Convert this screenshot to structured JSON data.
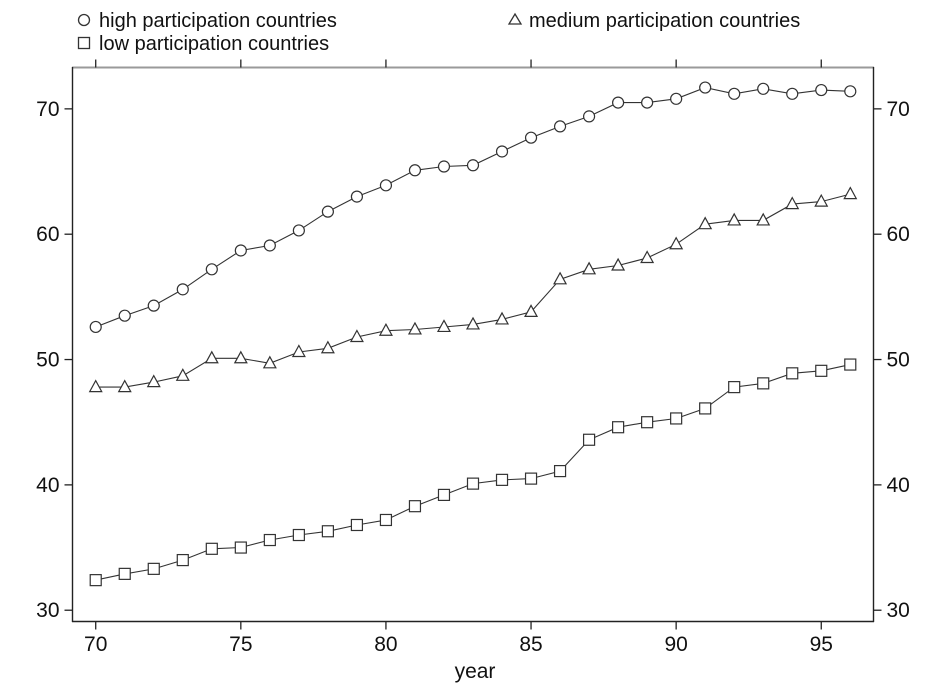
{
  "chart_data": {
    "type": "line",
    "xlabel": "year",
    "ylabel": "",
    "xlim": [
      69.2,
      96.8
    ],
    "ylim": [
      29.1,
      73.3
    ],
    "x_ticks": [
      70,
      75,
      80,
      85,
      90,
      95
    ],
    "x_tick_labels": [
      "70",
      "75",
      "80",
      "85",
      "90",
      "95"
    ],
    "y_ticks": [
      30,
      40,
      50,
      60,
      70
    ],
    "y_tick_labels": [
      "30",
      "40",
      "50",
      "60",
      "70"
    ],
    "grid": false,
    "legend_position": "top",
    "x": [
      70,
      71,
      72,
      73,
      74,
      75,
      76,
      77,
      78,
      79,
      80,
      81,
      82,
      83,
      84,
      85,
      86,
      87,
      88,
      89,
      90,
      91,
      92,
      93,
      94,
      95,
      96
    ],
    "series": [
      {
        "name": "high participation countries",
        "marker": "circle",
        "values": [
          52.6,
          53.5,
          54.3,
          55.6,
          57.2,
          58.7,
          59.1,
          60.3,
          61.8,
          63.0,
          63.9,
          65.1,
          65.4,
          65.5,
          66.6,
          67.7,
          68.6,
          69.4,
          70.5,
          70.5,
          70.8,
          71.7,
          71.2,
          71.6,
          71.2,
          71.5,
          71.4
        ]
      },
      {
        "name": "medium participation countries",
        "marker": "triangle",
        "values": [
          47.8,
          47.8,
          48.2,
          48.7,
          50.1,
          50.1,
          49.7,
          50.6,
          50.9,
          51.8,
          52.3,
          52.4,
          52.6,
          52.8,
          53.2,
          53.8,
          56.4,
          57.2,
          57.5,
          58.1,
          59.2,
          60.8,
          61.1,
          61.1,
          62.4,
          62.6,
          63.2
        ]
      },
      {
        "name": "low participation countries",
        "marker": "square",
        "values": [
          32.4,
          32.9,
          33.3,
          34.0,
          34.9,
          35.0,
          35.6,
          36.0,
          36.3,
          36.8,
          37.2,
          38.3,
          39.2,
          40.1,
          40.4,
          40.5,
          41.1,
          43.6,
          44.6,
          45.0,
          45.3,
          46.1,
          47.8,
          48.1,
          48.9,
          49.1,
          49.6
        ]
      }
    ]
  },
  "colors": {
    "line": "#333333",
    "axis": "#222222",
    "top_border": "#9a9a9a",
    "background": "#ffffff"
  }
}
